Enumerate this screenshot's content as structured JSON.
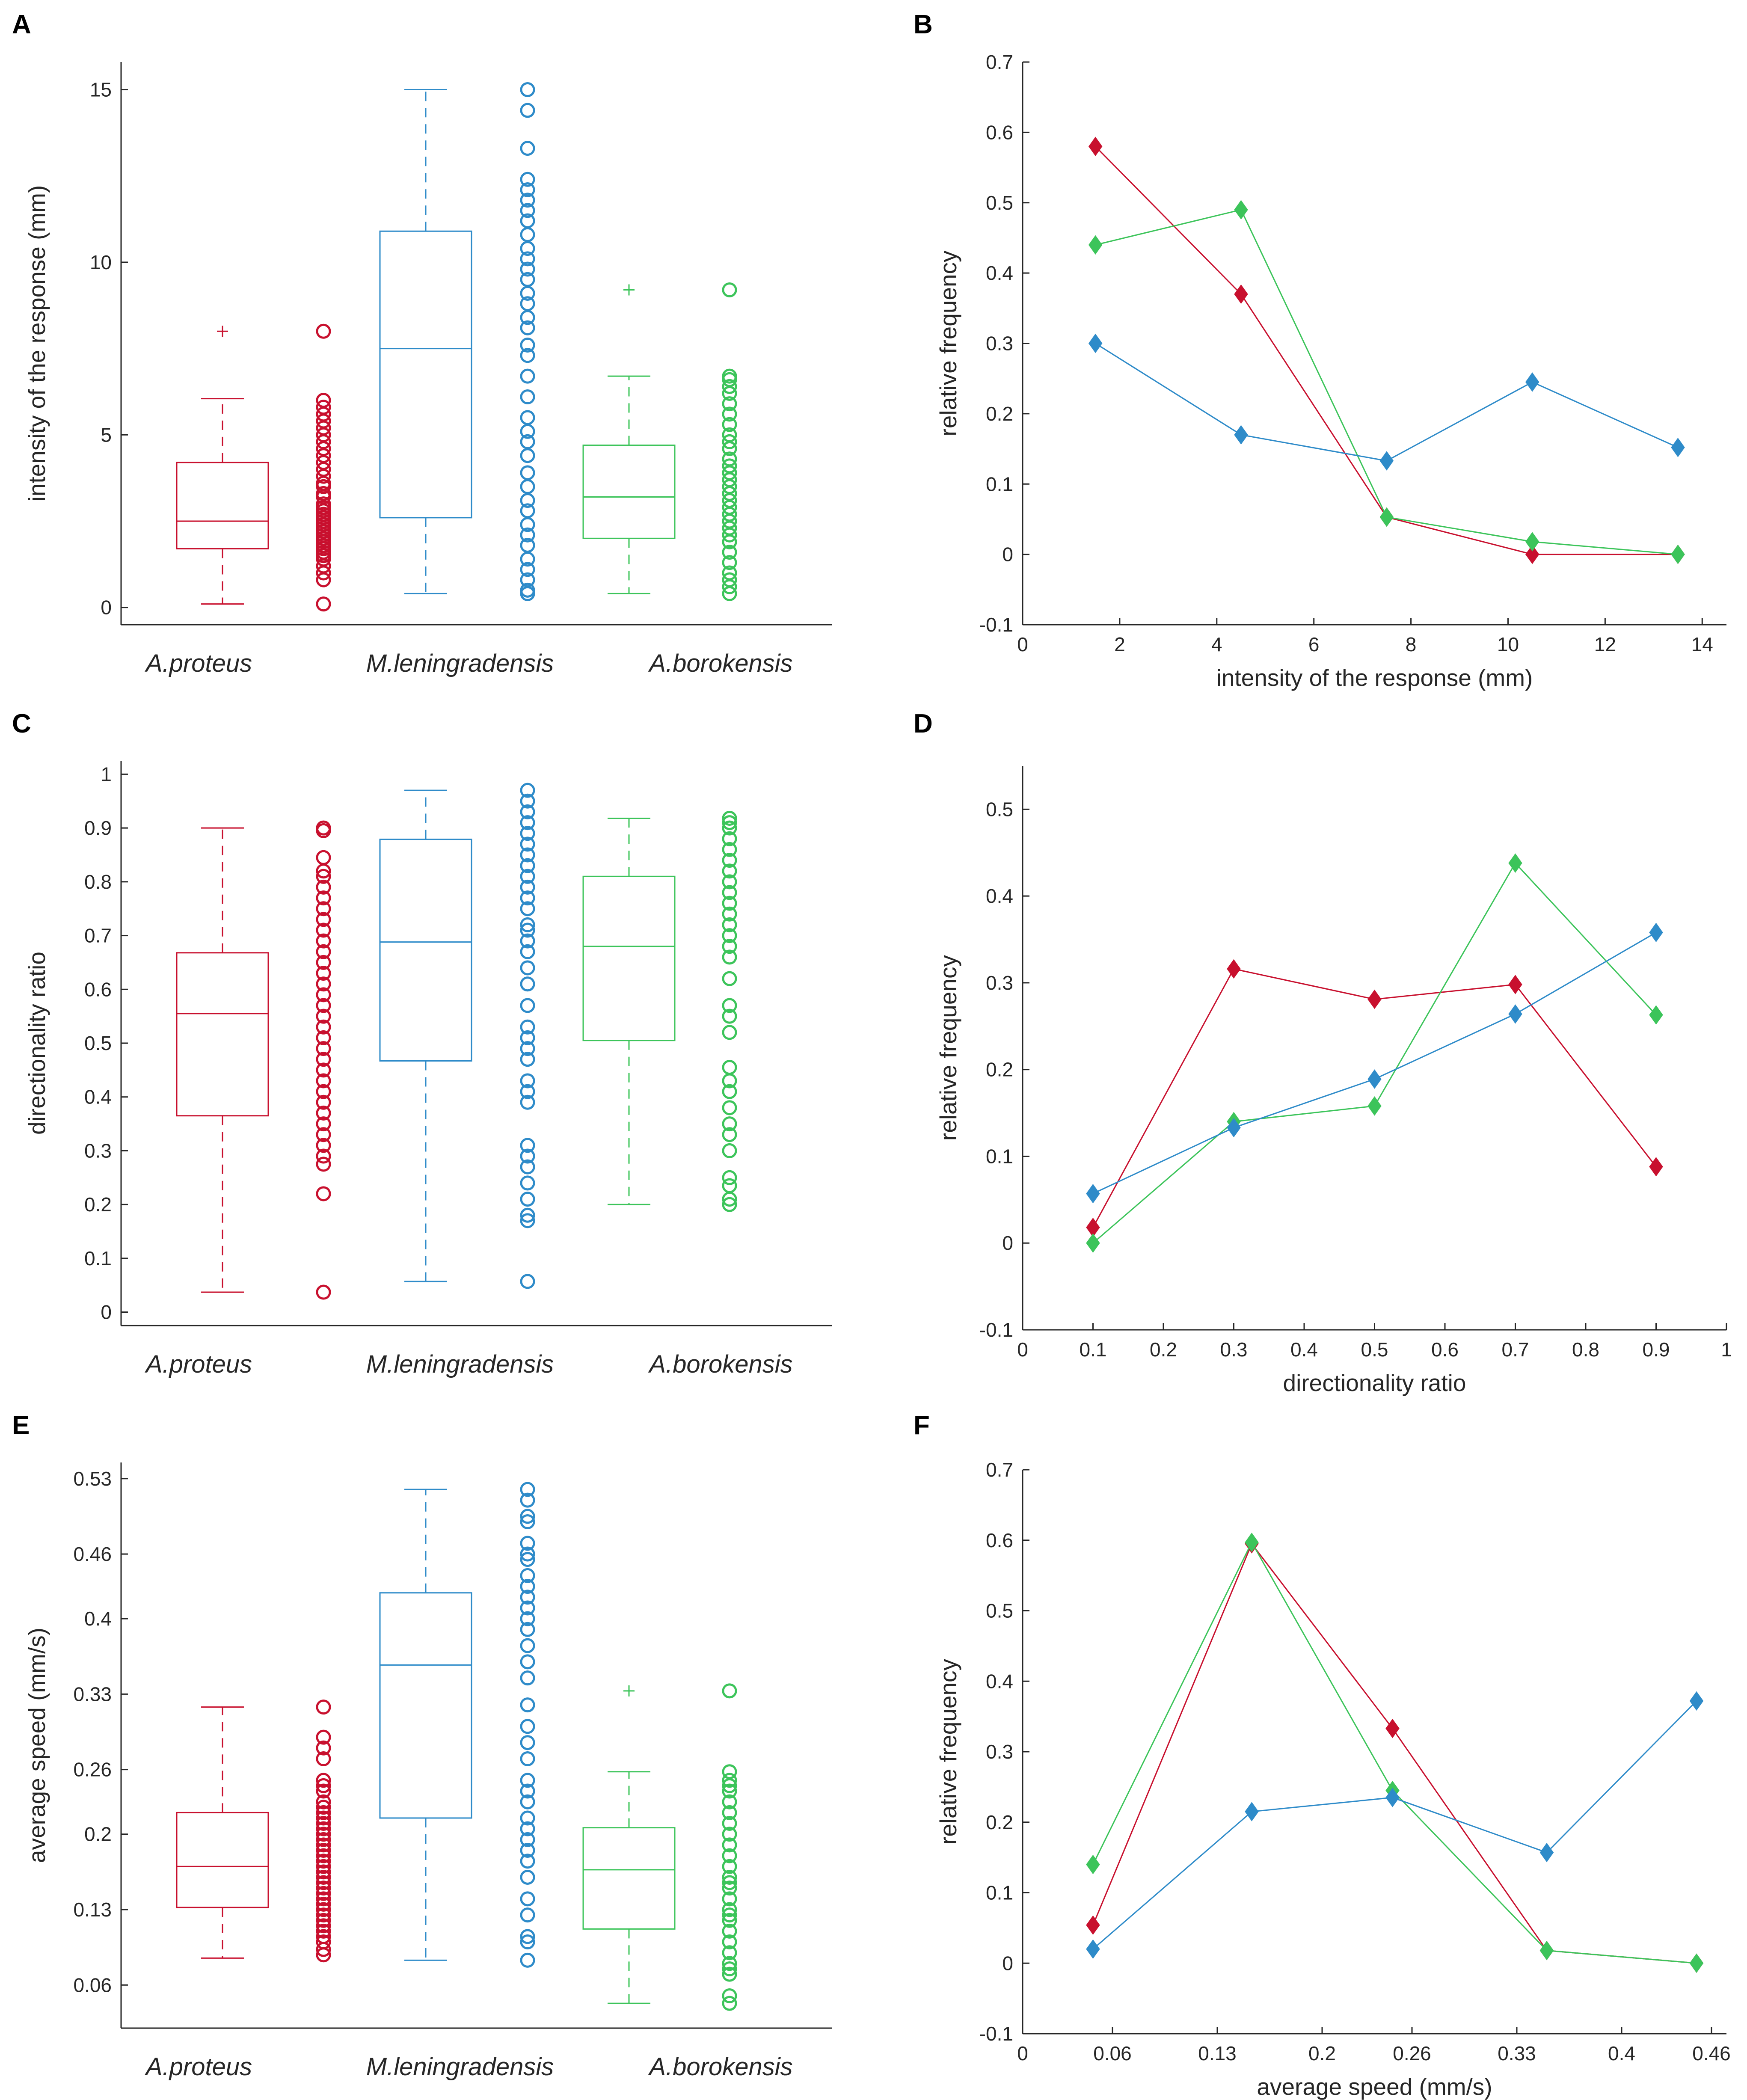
{
  "colors": {
    "proteus": "#c8102e",
    "leningradensis": "#2e8bc9",
    "borokensis": "#3cc45a",
    "axis": "#262626"
  },
  "chart_data": [
    {
      "panel": "A",
      "type": "box",
      "ylabel": "intensity of the response (mm)",
      "ylim": [
        -0.5,
        15.8
      ],
      "yticks": [
        0,
        5,
        10,
        15
      ],
      "yticklabels": [
        "0",
        "5",
        "10",
        "15"
      ],
      "categories": [
        "A.proteus",
        "M.leningradensis",
        "A.borokensis"
      ],
      "series": [
        {
          "name": "A.proteus",
          "color_key": "proteus",
          "min": 0.1,
          "q1": 1.7,
          "median": 2.5,
          "q3": 4.2,
          "max": 6.05,
          "outliers": [
            8.0
          ],
          "points": [
            0.1,
            0.8,
            1.0,
            1.2,
            1.4,
            1.5,
            1.6,
            1.7,
            1.8,
            1.9,
            2.0,
            2.1,
            2.2,
            2.3,
            2.4,
            2.5,
            2.6,
            2.7,
            2.8,
            2.9,
            3.0,
            3.2,
            3.3,
            3.5,
            3.6,
            3.8,
            4.0,
            4.2,
            4.4,
            4.6,
            4.8,
            5.0,
            5.2,
            5.4,
            5.6,
            5.8,
            6.0,
            8.0
          ]
        },
        {
          "name": "M.leningradensis",
          "color_key": "leningradensis",
          "min": 0.4,
          "q1": 2.6,
          "median": 7.5,
          "q3": 10.9,
          "max": 15.0,
          "outliers": [],
          "points": [
            0.4,
            0.5,
            0.8,
            1.1,
            1.4,
            1.8,
            2.1,
            2.4,
            2.8,
            3.1,
            3.5,
            3.9,
            4.4,
            4.8,
            5.1,
            5.5,
            6.1,
            6.7,
            7.3,
            7.6,
            8.1,
            8.4,
            8.8,
            9.1,
            9.5,
            9.8,
            10.1,
            10.4,
            10.8,
            11.2,
            11.5,
            11.8,
            12.1,
            12.4,
            13.3,
            14.4,
            15.0
          ]
        },
        {
          "name": "A.borokensis",
          "color_key": "borokensis",
          "min": 0.4,
          "q1": 2.0,
          "median": 3.2,
          "q3": 4.7,
          "max": 6.7,
          "outliers": [
            9.2
          ],
          "points": [
            0.4,
            0.6,
            0.8,
            1.0,
            1.3,
            1.6,
            1.9,
            2.1,
            2.3,
            2.5,
            2.7,
            2.9,
            3.1,
            3.3,
            3.5,
            3.7,
            3.9,
            4.1,
            4.3,
            4.6,
            4.8,
            5.0,
            5.3,
            5.6,
            5.9,
            6.2,
            6.4,
            6.6,
            6.7,
            9.2
          ]
        }
      ]
    },
    {
      "panel": "B",
      "type": "line",
      "xlabel": "intensity of the response (mm)",
      "ylabel": "relative frequency",
      "xlim": [
        0,
        14.5
      ],
      "ylim": [
        -0.1,
        0.7
      ],
      "xticks": [
        0,
        2,
        4,
        6,
        8,
        10,
        12,
        14
      ],
      "xticklabels": [
        "0",
        "2",
        "4",
        "6",
        "8",
        "10",
        "12",
        "14"
      ],
      "yticks": [
        -0.1,
        0,
        0.1,
        0.2,
        0.3,
        0.4,
        0.5,
        0.6,
        0.7
      ],
      "yticklabels": [
        "-0.1",
        "0",
        "0.1",
        "0.2",
        "0.3",
        "0.4",
        "0.5",
        "0.6",
        "0.7"
      ],
      "x": [
        1.5,
        4.5,
        7.5,
        10.5,
        13.5
      ],
      "series": [
        {
          "name": "A.proteus",
          "color_key": "proteus",
          "values": [
            0.58,
            0.37,
            0.053,
            0.0,
            0.0
          ]
        },
        {
          "name": "A.borokensis",
          "color_key": "borokensis",
          "values": [
            0.44,
            0.49,
            0.053,
            0.018,
            0.0
          ]
        },
        {
          "name": "M.leningradensis",
          "color_key": "leningradensis",
          "values": [
            0.3,
            0.17,
            0.133,
            0.245,
            0.152
          ]
        }
      ]
    },
    {
      "panel": "C",
      "type": "box",
      "ylabel": "directionality ratio",
      "ylim": [
        -0.025,
        1.025
      ],
      "yticks": [
        0,
        0.1,
        0.2,
        0.3,
        0.4,
        0.5,
        0.6,
        0.7,
        0.8,
        0.9,
        1
      ],
      "yticklabels": [
        "0",
        "0.1",
        "0.2",
        "0.3",
        "0.4",
        "0.5",
        "0.6",
        "0.7",
        "0.8",
        "0.9",
        "1"
      ],
      "categories": [
        "A.proteus",
        "M.leningradensis",
        "A.borokensis"
      ],
      "series": [
        {
          "name": "A.proteus",
          "color_key": "proteus",
          "min": 0.037,
          "q1": 0.365,
          "median": 0.555,
          "q3": 0.668,
          "max": 0.9,
          "outliers": [],
          "points": [
            0.037,
            0.22,
            0.275,
            0.29,
            0.31,
            0.33,
            0.35,
            0.37,
            0.39,
            0.41,
            0.43,
            0.45,
            0.47,
            0.49,
            0.51,
            0.53,
            0.55,
            0.57,
            0.59,
            0.61,
            0.63,
            0.65,
            0.67,
            0.69,
            0.71,
            0.73,
            0.75,
            0.77,
            0.79,
            0.81,
            0.82,
            0.845,
            0.895,
            0.9
          ]
        },
        {
          "name": "M.leningradensis",
          "color_key": "leningradensis",
          "min": 0.057,
          "q1": 0.467,
          "median": 0.688,
          "q3": 0.879,
          "max": 0.97,
          "outliers": [],
          "points": [
            0.057,
            0.17,
            0.18,
            0.21,
            0.24,
            0.27,
            0.29,
            0.31,
            0.39,
            0.41,
            0.43,
            0.47,
            0.49,
            0.51,
            0.53,
            0.57,
            0.61,
            0.64,
            0.67,
            0.69,
            0.71,
            0.72,
            0.75,
            0.77,
            0.79,
            0.81,
            0.83,
            0.85,
            0.87,
            0.89,
            0.91,
            0.93,
            0.95,
            0.97
          ]
        },
        {
          "name": "A.borokensis",
          "color_key": "borokensis",
          "min": 0.2,
          "q1": 0.505,
          "median": 0.68,
          "q3": 0.81,
          "max": 0.918,
          "outliers": [],
          "points": [
            0.2,
            0.21,
            0.235,
            0.25,
            0.3,
            0.33,
            0.35,
            0.38,
            0.41,
            0.43,
            0.455,
            0.52,
            0.55,
            0.57,
            0.62,
            0.66,
            0.68,
            0.7,
            0.72,
            0.74,
            0.76,
            0.78,
            0.8,
            0.82,
            0.84,
            0.86,
            0.88,
            0.9,
            0.91,
            0.918
          ]
        }
      ]
    },
    {
      "panel": "D",
      "type": "line",
      "xlabel": "directionality ratio",
      "ylabel": "relative frequency",
      "xlim": [
        0,
        1
      ],
      "ylim": [
        -0.1,
        0.55
      ],
      "xticks": [
        0,
        0.1,
        0.2,
        0.3,
        0.4,
        0.5,
        0.6,
        0.7,
        0.8,
        0.9,
        1
      ],
      "xticklabels": [
        "0",
        "0.1",
        "0.2",
        "0.3",
        "0.4",
        "0.5",
        "0.6",
        "0.7",
        "0.8",
        "0.9",
        "1"
      ],
      "yticks": [
        -0.1,
        0,
        0.1,
        0.2,
        0.3,
        0.4,
        0.5
      ],
      "yticklabels": [
        "-0.1",
        "0",
        "0.1",
        "0.2",
        "0.3",
        "0.4",
        "0.5"
      ],
      "x": [
        0.1,
        0.3,
        0.5,
        0.7,
        0.9
      ],
      "series": [
        {
          "name": "A.proteus",
          "color_key": "proteus",
          "values": [
            0.018,
            0.316,
            0.281,
            0.298,
            0.088
          ]
        },
        {
          "name": "A.borokensis",
          "color_key": "borokensis",
          "values": [
            0.0,
            0.14,
            0.158,
            0.438,
            0.263
          ]
        },
        {
          "name": "M.leningradensis",
          "color_key": "leningradensis",
          "values": [
            0.057,
            0.133,
            0.189,
            0.264,
            0.358
          ]
        }
      ]
    },
    {
      "panel": "E",
      "type": "box",
      "ylabel": "average speed (mm/s)",
      "ylim": [
        0.02,
        0.545
      ],
      "yticks": [
        0.06,
        0.13,
        0.2,
        0.26,
        0.33,
        0.4,
        0.46,
        0.53
      ],
      "yticklabels": [
        "0.06",
        "0.13",
        "0.2",
        "0.26",
        "0.33",
        "0.4",
        "0.46",
        "0.53"
      ],
      "categories": [
        "A.proteus",
        "M.leningradensis",
        "A.borokensis"
      ],
      "series": [
        {
          "name": "A.proteus",
          "color_key": "proteus",
          "min": 0.085,
          "q1": 0.132,
          "median": 0.17,
          "q3": 0.22,
          "max": 0.318,
          "outliers": [],
          "points": [
            0.088,
            0.093,
            0.1,
            0.105,
            0.11,
            0.115,
            0.12,
            0.125,
            0.13,
            0.135,
            0.14,
            0.145,
            0.15,
            0.155,
            0.16,
            0.165,
            0.17,
            0.175,
            0.18,
            0.185,
            0.19,
            0.195,
            0.2,
            0.205,
            0.21,
            0.215,
            0.22,
            0.225,
            0.23,
            0.24,
            0.245,
            0.25,
            0.27,
            0.28,
            0.29,
            0.318
          ]
        },
        {
          "name": "M.leningradensis",
          "color_key": "leningradensis",
          "min": 0.083,
          "q1": 0.215,
          "median": 0.357,
          "q3": 0.424,
          "max": 0.52,
          "outliers": [],
          "points": [
            0.083,
            0.1,
            0.105,
            0.125,
            0.14,
            0.16,
            0.175,
            0.185,
            0.195,
            0.205,
            0.215,
            0.23,
            0.24,
            0.25,
            0.27,
            0.285,
            0.3,
            0.32,
            0.345,
            0.36,
            0.375,
            0.39,
            0.4,
            0.41,
            0.42,
            0.43,
            0.44,
            0.455,
            0.46,
            0.47,
            0.49,
            0.495,
            0.51,
            0.52
          ]
        },
        {
          "name": "A.borokensis",
          "color_key": "borokensis",
          "min": 0.043,
          "q1": 0.112,
          "median": 0.167,
          "q3": 0.206,
          "max": 0.258,
          "outliers": [
            0.333
          ],
          "points": [
            0.043,
            0.05,
            0.07,
            0.075,
            0.08,
            0.09,
            0.1,
            0.11,
            0.12,
            0.125,
            0.13,
            0.14,
            0.15,
            0.155,
            0.16,
            0.17,
            0.18,
            0.19,
            0.2,
            0.21,
            0.22,
            0.23,
            0.24,
            0.245,
            0.25,
            0.258,
            0.333
          ]
        }
      ]
    },
    {
      "panel": "F",
      "type": "line",
      "xlabel": "average speed (mm/s)",
      "ylabel": "relative frequency",
      "xlim": [
        0,
        0.47
      ],
      "ylim": [
        -0.1,
        0.7
      ],
      "xticks": [
        0,
        0.06,
        0.13,
        0.2,
        0.26,
        0.33,
        0.4,
        0.46
      ],
      "xticklabels": [
        "0",
        "0.06",
        "0.13",
        "0.2",
        "0.26",
        "0.33",
        "0.4",
        "0.46"
      ],
      "yticks": [
        -0.1,
        0,
        0.1,
        0.2,
        0.3,
        0.4,
        0.5,
        0.6,
        0.7
      ],
      "yticklabels": [
        "-0.1",
        "0",
        "0.1",
        "0.2",
        "0.3",
        "0.4",
        "0.5",
        "0.6",
        "0.7"
      ],
      "x": [
        0.047,
        0.153,
        0.247,
        0.35,
        0.45
      ],
      "series": [
        {
          "name": "A.proteus",
          "color_key": "proteus",
          "values": [
            0.054,
            0.595,
            0.333,
            0.018,
            0.0
          ]
        },
        {
          "name": "A.borokensis",
          "color_key": "borokensis",
          "values": [
            0.14,
            0.597,
            0.245,
            0.018,
            0.0
          ]
        },
        {
          "name": "M.leningradensis",
          "color_key": "leningradensis",
          "values": [
            0.02,
            0.215,
            0.235,
            0.157,
            0.372
          ]
        }
      ]
    }
  ]
}
